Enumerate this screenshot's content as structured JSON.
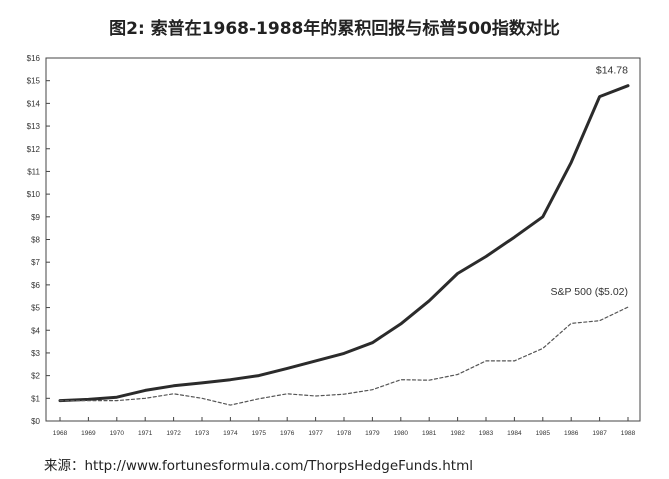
{
  "page": {
    "title": "图2: 索普在1968-1988年的累积回报与标普500指数对比",
    "source": "来源：http://www.fortunesformula.com/ThorpsHedgeFunds.html"
  },
  "chart_data": {
    "type": "line",
    "title": "图2: 索普在1968-1988年的累积回报与标普500指数对比",
    "xlabel": "",
    "ylabel": "",
    "x": [
      1968,
      1969,
      1970,
      1971,
      1972,
      1973,
      1974,
      1975,
      1976,
      1977,
      1978,
      1979,
      1980,
      1981,
      1982,
      1983,
      1984,
      1985,
      1986,
      1987,
      1988
    ],
    "ylim": [
      0,
      16
    ],
    "y_ticks": [
      "$0",
      "$1",
      "$2",
      "$3",
      "$4",
      "$5",
      "$6",
      "$7",
      "$8",
      "$9",
      "$10",
      "$11",
      "$12",
      "$13",
      "$14",
      "$15",
      "$16"
    ],
    "grid": false,
    "colors": {
      "thorp": "#2b2b2b",
      "sp500": "#555555"
    },
    "series": [
      {
        "key": "thorp",
        "style": "solid",
        "values": [
          0.9,
          0.95,
          1.05,
          1.35,
          1.55,
          1.68,
          1.82,
          2.0,
          2.32,
          2.65,
          2.98,
          3.45,
          4.28,
          5.3,
          6.5,
          7.25,
          8.1,
          9.0,
          11.4,
          14.3,
          14.78
        ],
        "end_label": "$14.78"
      },
      {
        "key": "sp500",
        "style": "dashed",
        "values": [
          0.9,
          0.9,
          0.9,
          1.0,
          1.2,
          1.0,
          0.7,
          0.98,
          1.2,
          1.1,
          1.18,
          1.38,
          1.82,
          1.8,
          2.05,
          2.65,
          2.65,
          3.2,
          4.3,
          4.42,
          5.02
        ],
        "end_label": "S&P 500 ($5.02)"
      }
    ]
  }
}
